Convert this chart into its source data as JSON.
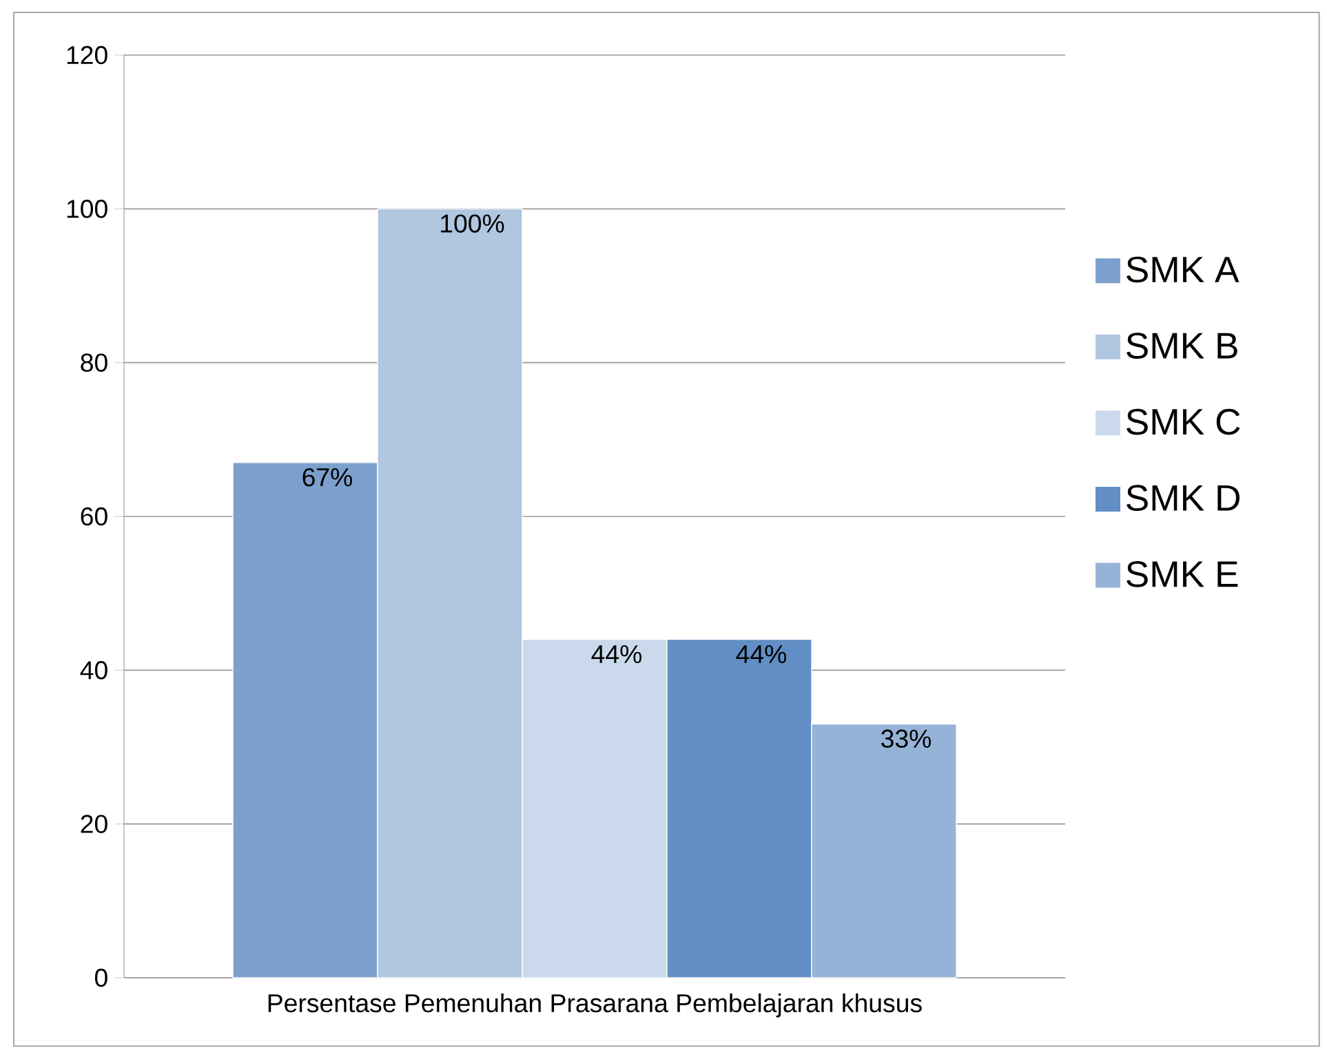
{
  "chart_data": {
    "type": "bar",
    "categories": [
      "Persentase Pemenuhan Prasarana Pembelajaran khusus"
    ],
    "series": [
      {
        "name": "SMK A",
        "color": "#7ba0cd",
        "values": [
          67
        ],
        "value_labels": [
          "67%"
        ]
      },
      {
        "name": "SMK B",
        "color": "#b0c6e1",
        "values": [
          100
        ],
        "value_labels": [
          "100%"
        ]
      },
      {
        "name": "SMK C",
        "color": "#cad9eb",
        "values": [
          44
        ],
        "value_labels": [
          "44%"
        ]
      },
      {
        "name": "SMK D",
        "color": "#618ec4",
        "values": [
          44
        ],
        "value_labels": [
          "44%"
        ]
      },
      {
        "name": "SMK E",
        "color": "#95b3d7",
        "values": [
          33
        ],
        "value_labels": [
          "33%"
        ]
      }
    ],
    "ylim": [
      0,
      120
    ],
    "yticks": [
      0,
      20,
      40,
      60,
      80,
      100,
      120
    ],
    "grid": "y",
    "legend": "right"
  }
}
